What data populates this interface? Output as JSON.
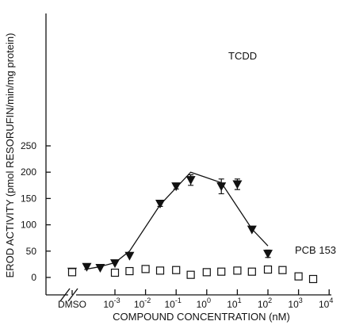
{
  "chart_data": {
    "type": "scatter",
    "xlabel": "COMPOUND CONCENTRATION (nM)",
    "ylabel": "EROD ACTIVITY (pmol RESORUFIN/min/mg protein)",
    "x_scale": "log",
    "ylim": [
      0,
      250
    ],
    "y_ticks": [
      0,
      50,
      100,
      150,
      200,
      250
    ],
    "y_tick_labels": [
      "0",
      "50",
      "100",
      "150",
      "200",
      "250"
    ],
    "x_ticks": [
      0.001,
      0.01,
      0.1,
      1,
      10,
      100,
      1000,
      10000
    ],
    "x_tick_labels": [
      {
        "base": "10",
        "exp": "-3"
      },
      {
        "base": "10",
        "exp": "-2"
      },
      {
        "base": "10",
        "exp": "-1"
      },
      {
        "base": "10",
        "exp": "0"
      },
      {
        "base": "10",
        "exp": "1"
      },
      {
        "base": "10",
        "exp": "2"
      },
      {
        "base": "10",
        "exp": "3"
      },
      {
        "base": "10",
        "exp": "4"
      }
    ],
    "dmso_label": "DMSO",
    "series": [
      {
        "name": "TCDD",
        "marker": "filled-down-triangle",
        "points": [
          {
            "x": "DMSO",
            "y": 11
          },
          {
            "x": 0.00012,
            "y": 20
          },
          {
            "x": 0.00033,
            "y": 18
          },
          {
            "x": 0.001,
            "y": 27
          },
          {
            "x": 0.003,
            "y": 41
          },
          {
            "x": 0.03,
            "y": 140,
            "err": 5
          },
          {
            "x": 0.1,
            "y": 173,
            "err": 5
          },
          {
            "x": 0.3,
            "y": 185,
            "err": 10
          },
          {
            "x": 3,
            "y": 173,
            "err": 14
          },
          {
            "x": 10,
            "y": 177,
            "err": 10
          },
          {
            "x": 30,
            "y": 91
          },
          {
            "x": 100,
            "y": 45,
            "err": 7
          }
        ],
        "fit_line": [
          {
            "x": 0.0001,
            "y": 15
          },
          {
            "x": 0.0003,
            "y": 20
          },
          {
            "x": 0.001,
            "y": 28
          },
          {
            "x": 0.003,
            "y": 50
          },
          {
            "x": 0.03,
            "y": 138
          },
          {
            "x": 0.3,
            "y": 200
          },
          {
            "x": 3,
            "y": 180
          },
          {
            "x": 30,
            "y": 92
          },
          {
            "x": 100,
            "y": 60
          }
        ]
      },
      {
        "name": "PCB 153",
        "marker": "open-square",
        "points": [
          {
            "x": "DMSO",
            "y": 10
          },
          {
            "x": 0.001,
            "y": 9,
            "err": 5
          },
          {
            "x": 0.003,
            "y": 12
          },
          {
            "x": 0.01,
            "y": 16
          },
          {
            "x": 0.03,
            "y": 13
          },
          {
            "x": 0.1,
            "y": 14
          },
          {
            "x": 0.3,
            "y": 5
          },
          {
            "x": 1,
            "y": 10
          },
          {
            "x": 3,
            "y": 11
          },
          {
            "x": 10,
            "y": 13
          },
          {
            "x": 30,
            "y": 11,
            "err": 6
          },
          {
            "x": 100,
            "y": 15,
            "err": 4
          },
          {
            "x": 300,
            "y": 14
          },
          {
            "x": 1000,
            "y": 2,
            "err": 6
          },
          {
            "x": 3000,
            "y": -3
          }
        ]
      }
    ]
  }
}
